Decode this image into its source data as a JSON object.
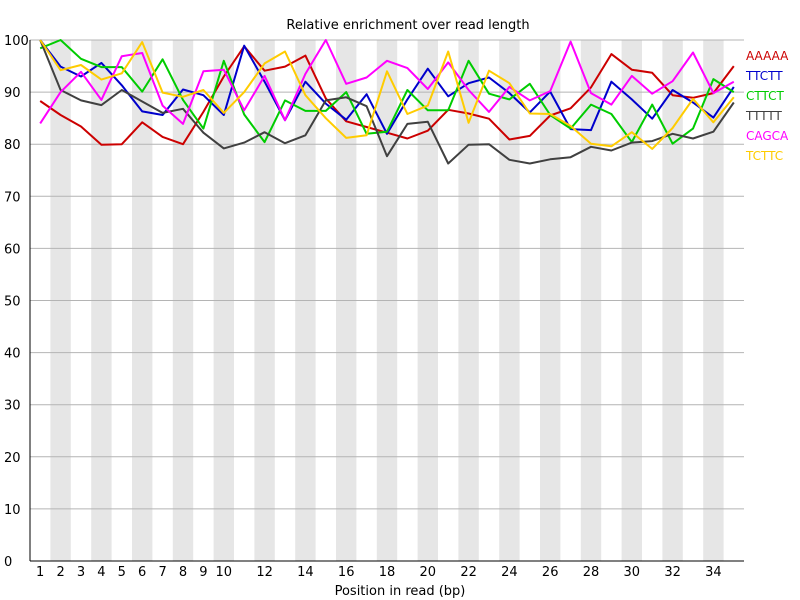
{
  "chart_data": {
    "type": "line",
    "title": "Relative enrichment over read length",
    "xlabel": "Position in read (bp)",
    "ylabel": "",
    "xlim": [
      1,
      34
    ],
    "ylim": [
      0,
      100
    ],
    "x": [
      1,
      2,
      3,
      4,
      5,
      6,
      7,
      8,
      9,
      10,
      11,
      12,
      13,
      14,
      15,
      16,
      17,
      18,
      19,
      20,
      21,
      22,
      23,
      24,
      25,
      26,
      27,
      28,
      29,
      30,
      31,
      32,
      33,
      34,
      35
    ],
    "x_ticks": [
      1,
      2,
      3,
      4,
      5,
      6,
      7,
      8,
      9,
      10,
      12,
      14,
      16,
      18,
      20,
      22,
      24,
      26,
      28,
      30,
      32,
      34
    ],
    "y_ticks": [
      0,
      10,
      20,
      30,
      40,
      50,
      60,
      70,
      80,
      90,
      100
    ],
    "grid": "horizontal",
    "alternating_bands": true,
    "legend_position": "right",
    "series": [
      {
        "name": "AAAAA",
        "color": "#cc0000",
        "values": [
          88.3,
          85.6,
          83.4,
          79.9,
          80.0,
          84.2,
          81.4,
          80.0,
          86.2,
          93.0,
          98.8,
          94.1,
          94.9,
          97.0,
          88.8,
          84.4,
          83.3,
          82.2,
          81.1,
          82.6,
          86.6,
          85.9,
          84.9,
          80.9,
          81.6,
          85.5,
          86.9,
          90.9,
          97.3,
          94.3,
          93.7,
          89.4,
          88.9,
          89.8,
          95.0
        ]
      },
      {
        "name": "TTCTT",
        "color": "#0000cc",
        "values": [
          100,
          94.9,
          93.0,
          95.6,
          91.3,
          86.3,
          85.6,
          90.5,
          89.4,
          85.6,
          98.9,
          92.0,
          84.6,
          92.0,
          87.8,
          84.7,
          89.6,
          82.0,
          88.6,
          94.5,
          89.2,
          91.7,
          92.8,
          89.8,
          86.1,
          90.1,
          82.9,
          82.7,
          92.0,
          88.6,
          84.9,
          90.4,
          88.0,
          85.1,
          91.0
        ]
      },
      {
        "name": "CTTCT",
        "color": "#00cc00",
        "values": [
          98.4,
          100,
          96.4,
          94.8,
          94.8,
          90.1,
          96.3,
          88.5,
          83.0,
          96.0,
          85.7,
          80.4,
          88.4,
          86.4,
          86.4,
          90.0,
          82.0,
          82.4,
          90.4,
          86.5,
          86.5,
          96.0,
          89.7,
          88.6,
          91.6,
          85.6,
          83.0,
          87.6,
          85.8,
          80.4,
          87.6,
          80.1,
          83.0,
          92.5,
          90.0
        ]
      },
      {
        "name": "TTTTT",
        "color": "#404040",
        "values": [
          100,
          90.4,
          88.4,
          87.5,
          90.4,
          88.2,
          86.0,
          86.8,
          82.2,
          79.2,
          80.3,
          82.3,
          80.2,
          81.7,
          88.4,
          89.0,
          87.3,
          77.7,
          83.9,
          84.3,
          76.3,
          79.9,
          80.0,
          77.0,
          76.3,
          77.1,
          77.5,
          79.5,
          78.8,
          80.3,
          80.6,
          82.0,
          81.1,
          82.4,
          88.0
        ]
      },
      {
        "name": "CAGCA",
        "color": "#ff00ff",
        "values": [
          84.0,
          90.0,
          93.9,
          88.5,
          96.9,
          97.5,
          87.4,
          83.9,
          94.0,
          94.3,
          86.5,
          93.1,
          84.6,
          93.5,
          100,
          91.6,
          92.8,
          96.0,
          94.6,
          90.6,
          95.7,
          90.4,
          86.2,
          91.0,
          88.4,
          90.2,
          99.7,
          89.8,
          87.6,
          93.1,
          89.7,
          92.1,
          97.6,
          89.8,
          92.0
        ]
      },
      {
        "name": "TCTTC",
        "color": "#ffcc00",
        "values": [
          100,
          94.2,
          95.2,
          92.4,
          93.6,
          99.6,
          89.9,
          89.1,
          90.4,
          86.0,
          90.0,
          95.5,
          97.8,
          89.4,
          85.0,
          81.2,
          81.7,
          94.0,
          85.8,
          87.4,
          97.8,
          84.1,
          94.1,
          91.7,
          85.9,
          85.8,
          83.5,
          80.1,
          79.6,
          82.3,
          79.1,
          83.1,
          88.7,
          84.2,
          89.0
        ]
      }
    ]
  }
}
